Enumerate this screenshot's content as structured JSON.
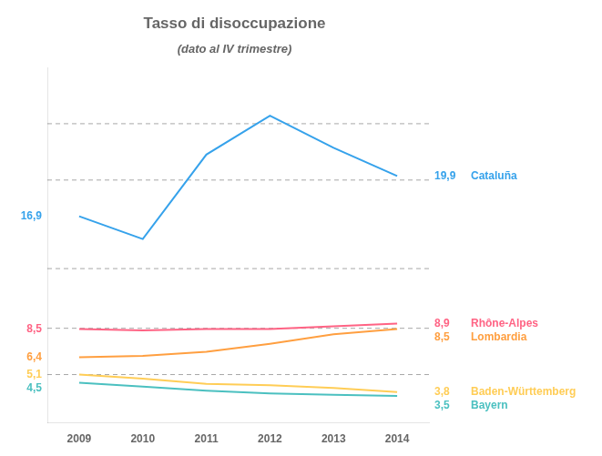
{
  "chart_data": {
    "type": "line",
    "title": "Tasso di disoccupazione",
    "subtitle": "(dato al IV trimestre)",
    "x": [
      2009,
      2010,
      2011,
      2012,
      2013,
      2014
    ],
    "xlim": [
      2008.5,
      2014.5
    ],
    "xticks": [
      2009,
      2010,
      2011,
      2012,
      2013,
      2014
    ],
    "ylim": [
      1.5,
      28.0
    ],
    "series": [
      {
        "name": "Cataluña",
        "values": [
          16.9,
          15.2,
          21.5,
          24.4,
          22.0,
          19.9
        ],
        "value_labels": [
          "16,9",
          null,
          null,
          null,
          null,
          "19,9"
        ]
      },
      {
        "name": "Rhône-Alpes",
        "values": [
          8.5,
          8.4,
          8.5,
          8.5,
          8.7,
          8.9
        ],
        "value_labels": [
          "8,5",
          null,
          null,
          null,
          null,
          "8,9"
        ]
      },
      {
        "name": "Lombardia",
        "values": [
          6.4,
          6.5,
          6.8,
          7.4,
          8.1,
          8.5
        ],
        "value_labels": [
          "6,4",
          null,
          null,
          null,
          null,
          "8,5"
        ]
      },
      {
        "name": "Baden-Württemberg",
        "values": [
          5.1,
          4.8,
          4.4,
          4.3,
          4.1,
          3.8
        ],
        "value_labels": [
          "5,1",
          null,
          null,
          null,
          null,
          "3,8"
        ]
      },
      {
        "name": "Bayern",
        "values": [
          4.5,
          4.2,
          3.9,
          3.7,
          3.6,
          3.5
        ],
        "value_labels": [
          "4,5",
          null,
          null,
          null,
          null,
          "3,5"
        ]
      }
    ],
    "reference_lines": [
      23.8,
      19.6,
      13.0,
      8.55,
      5.1
    ],
    "grid": false,
    "tick_labels": "x"
  }
}
